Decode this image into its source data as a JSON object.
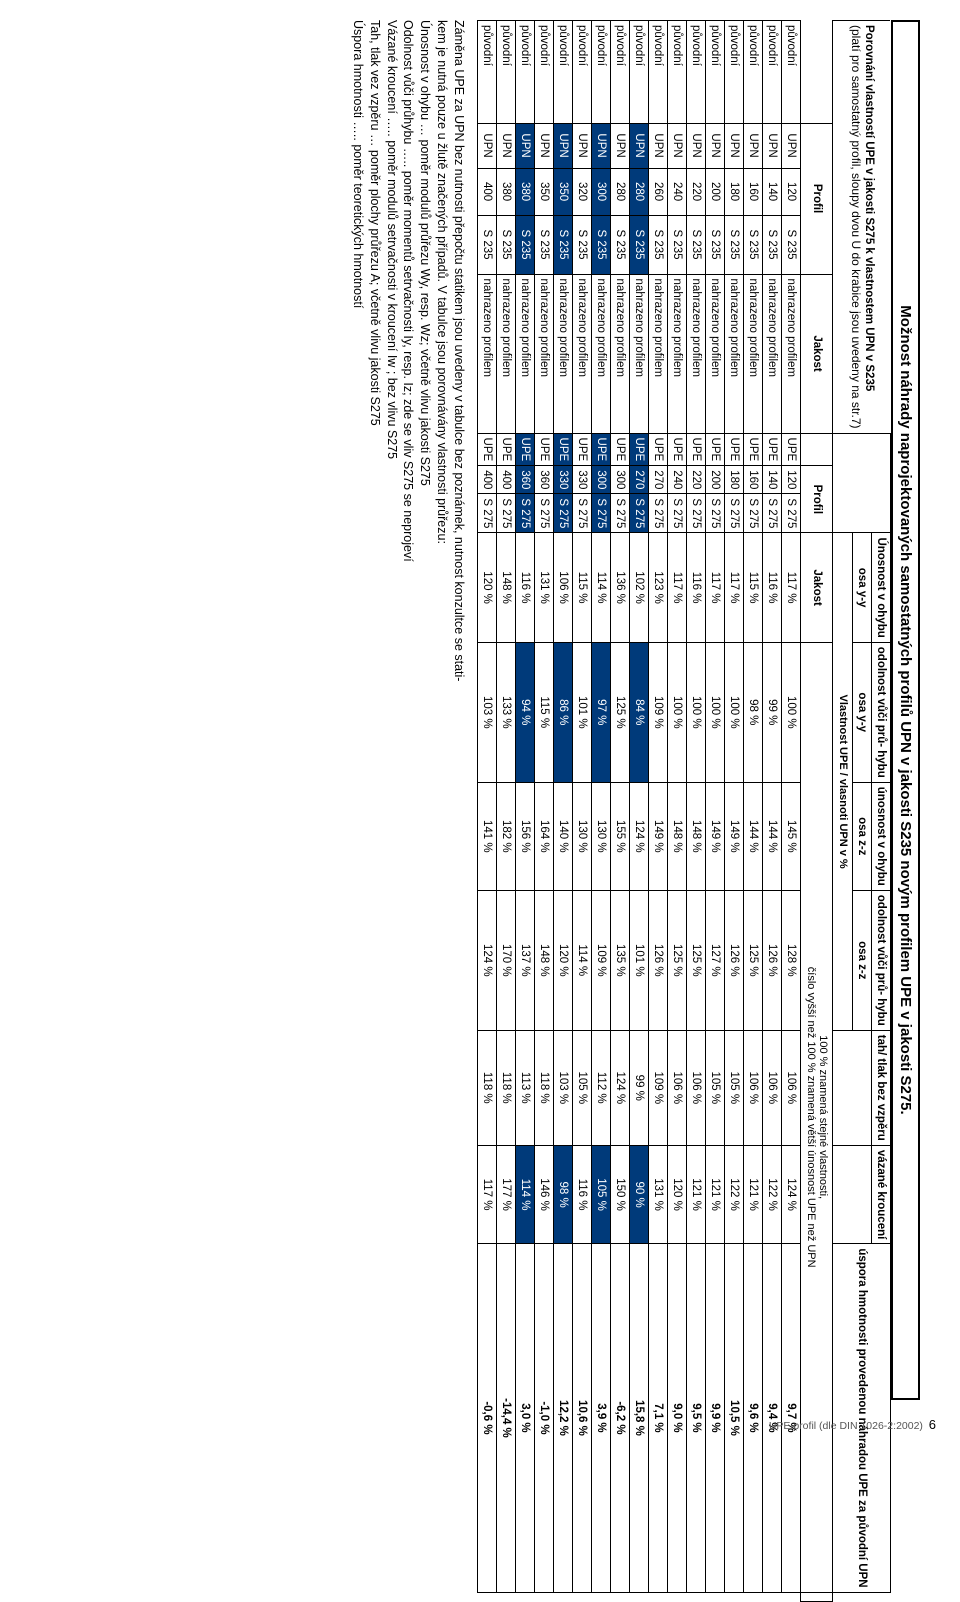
{
  "title": "Možnost náhrady naprojektovaných samostatných profilů UPN v jakosti S235 novým profilem UPE v jakosti S275.",
  "subtitle": "Porovnání vlastností UPE v jakosti S275 k vlastnostem UPN v S235",
  "subtitle_note": "(platí pro samostatný profil, sloupy dvou U do krabice jsou uvedeny na str.7)",
  "header_groups": {
    "g1": "Únosnost v ohybu",
    "g2": "odolnost vůči prů- hybu",
    "g3": "únosnost v ohybu",
    "g4": "odolnost vůči prů- hybu",
    "g5": "tah/ tlak bez vzpěru",
    "g6": "vázané kroucení",
    "save": "úspora hmotnosti provedenou náhradou UPE za původní UPN"
  },
  "header_axes": {
    "a1": "osa y-y",
    "a2": "osa y-y",
    "a3": "osa z-z",
    "a4": "osa z-z"
  },
  "col_labels": {
    "profil_a": "Profil",
    "jakost_a": "Jakost",
    "profil_b": "Profil",
    "jakost_b": "Jakost"
  },
  "ratio_header_line1": "Vlastnost UPE / vlasnoti UPN v %",
  "ratio_header_line2": "100 % znamená stejné vlastnosti,",
  "ratio_header_line3": "číslo vyšší než 100 % znamená větší únosnost UPE než UPN",
  "action_label": "nahrazeno profilem",
  "original_label": "původní",
  "jakost_a": "S 235",
  "jakost_b": "S 275",
  "prof_a": "UPN",
  "prof_b": "UPE",
  "rows": [
    {
      "sa": 120,
      "sb": 120,
      "p": [
        "117 %",
        "100 %",
        "145 %",
        "128 %",
        "106 %",
        "124 %"
      ],
      "save": "9,7 %"
    },
    {
      "sa": 140,
      "sb": 140,
      "p": [
        "116 %",
        "99 %",
        "144 %",
        "126 %",
        "106 %",
        "122 %"
      ],
      "save": "9,4 %"
    },
    {
      "sa": 160,
      "sb": 160,
      "p": [
        "115 %",
        "98 %",
        "144 %",
        "125 %",
        "106 %",
        "121 %"
      ],
      "save": "9,6 %"
    },
    {
      "sa": 180,
      "sb": 180,
      "p": [
        "117 %",
        "100 %",
        "149 %",
        "126 %",
        "105 %",
        "122 %"
      ],
      "save": "10,5 %"
    },
    {
      "sa": 200,
      "sb": 200,
      "p": [
        "117 %",
        "100 %",
        "149 %",
        "127 %",
        "105 %",
        "121 %"
      ],
      "save": "9,9 %"
    },
    {
      "sa": 220,
      "sb": 220,
      "p": [
        "116 %",
        "100 %",
        "148 %",
        "125 %",
        "106 %",
        "121 %"
      ],
      "save": "9,5 %"
    },
    {
      "sa": 240,
      "sb": 240,
      "p": [
        "117 %",
        "100 %",
        "148 %",
        "125 %",
        "106 %",
        "120 %"
      ],
      "save": "9,0 %"
    },
    {
      "sa": 260,
      "sb": 270,
      "p": [
        "123 %",
        "109 %",
        "149 %",
        "126 %",
        "109 %",
        "131 %"
      ],
      "save": "7,1 %"
    },
    {
      "sa": 280,
      "sb": 270,
      "p": [
        "102 %",
        "84 %",
        "124 %",
        "101 %",
        "99 %",
        "90 %"
      ],
      "save": "15,8 %",
      "hl": true
    },
    {
      "sa": 280,
      "sb": 300,
      "p": [
        "136 %",
        "125 %",
        "155 %",
        "135 %",
        "124 %",
        "150 %"
      ],
      "save": "-6,2 %"
    },
    {
      "sa": 300,
      "sb": 300,
      "p": [
        "114 %",
        "97 %",
        "130 %",
        "109 %",
        "112 %",
        "105 %"
      ],
      "save": "3,9 %",
      "hl": true
    },
    {
      "sa": 320,
      "sb": 330,
      "p": [
        "115 %",
        "101 %",
        "130 %",
        "114 %",
        "105 %",
        "116 %"
      ],
      "save": "10,6 %"
    },
    {
      "sa": 350,
      "sb": 330,
      "p": [
        "106 %",
        "86 %",
        "140 %",
        "120 %",
        "103 %",
        "98 %"
      ],
      "save": "12,2 %",
      "hl": true
    },
    {
      "sa": 350,
      "sb": 360,
      "p": [
        "131 %",
        "115 %",
        "164 %",
        "148 %",
        "118 %",
        "146 %"
      ],
      "save": "-1,0 %"
    },
    {
      "sa": 380,
      "sb": 360,
      "p": [
        "116 %",
        "94 %",
        "156 %",
        "137 %",
        "113 %",
        "114 %"
      ],
      "save": "3,0 %",
      "hl": true
    },
    {
      "sa": 380,
      "sb": 400,
      "p": [
        "148 %",
        "133 %",
        "182 %",
        "170 %",
        "118 %",
        "177 %"
      ],
      "save": "-14,4 %"
    },
    {
      "sa": 400,
      "sb": 400,
      "p": [
        "120 %",
        "103 %",
        "141 %",
        "124 %",
        "118 %",
        "117 %"
      ],
      "save": "-0,6 %"
    }
  ],
  "notes": [
    "Záměna UPE za UPN bez nutnosti přepočtu statikem jsou uvedeny v tabulce bez poznámek, nutnost konzultce se stati-",
    "kem je nutná pouze u žlutě značených případů. V tabulce jsou porovnávány vlastnosti průřezu:",
    "Únosnost v ohybu … poměr modulů průřezu Wy, resp. Wz; včetně vlivu jakosti S275",
    "Odolnost vůči průhybu ….. poměr momentů setrvačnosti Iy, resp. Iz; zde se vliv S275 se neprojeví",
    "Vázané kroucení ….. poměr modulů setrvačnosti v kroucení Iw ; bez vlivu S275",
    "Tah, tlak vez vzpěru … poměr plochy průřezu A; včetně vlivu jakosti S275",
    "Úspora hmotnosti ….. poměr teoretických hmotností"
  ],
  "footer_left": "UPE profil (dle DIN 1026-2:2002)",
  "footer_page": "6"
}
